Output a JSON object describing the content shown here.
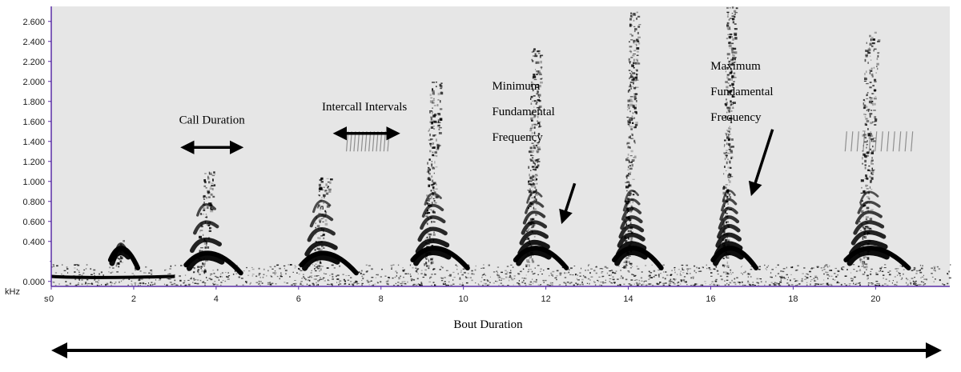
{
  "chart_data": {
    "type": "spectrogram",
    "title": "",
    "ylabel": "kHz",
    "xlabel": "s",
    "x_axis_title": "Bout Duration",
    "xlim": [
      0,
      21.8
    ],
    "ylim": [
      -0.05,
      2.75
    ],
    "x_ticks": [
      0,
      2,
      4,
      6,
      8,
      10,
      12,
      14,
      16,
      18,
      20
    ],
    "x_tick_labels": [
      "0",
      "2",
      "4",
      "6",
      "8",
      "10",
      "12",
      "14",
      "16",
      "18",
      "20"
    ],
    "y_ticks": [
      0,
      0.4,
      0.6,
      0.8,
      1.0,
      1.2,
      1.4,
      1.6,
      1.8,
      2.0,
      2.2,
      2.4,
      2.6
    ],
    "y_tick_labels": [
      "0.000",
      "0.400",
      "0.600",
      "0.800",
      "1.000",
      "1.200",
      "1.400",
      "1.600",
      "1.800",
      "2.000",
      "2.200",
      "2.400",
      "2.600"
    ],
    "grid": false,
    "colors": {
      "background": "#e6e6e6",
      "ink": "#000000",
      "axis": "#5a2ea6"
    },
    "calls": [
      {
        "start": 1.4,
        "end": 2.1,
        "low": 0.15,
        "high": 0.42,
        "stripes": 3
      },
      {
        "start": 3.2,
        "end": 4.6,
        "low": 0.1,
        "high": 1.1,
        "stripes": 4
      },
      {
        "start": 6.0,
        "end": 7.4,
        "low": 0.1,
        "high": 1.05,
        "stripes": 5
      },
      {
        "start": 8.7,
        "end": 10.1,
        "low": 0.15,
        "high": 2.0,
        "stripes": 6
      },
      {
        "start": 11.2,
        "end": 12.5,
        "low": 0.15,
        "high": 2.35,
        "stripes": 7
      },
      {
        "start": 13.6,
        "end": 14.8,
        "low": 0.15,
        "high": 2.7,
        "stripes": 8
      },
      {
        "start": 16.0,
        "end": 17.1,
        "low": 0.15,
        "high": 2.75,
        "stripes": 8
      },
      {
        "start": 19.2,
        "end": 20.8,
        "low": 0.15,
        "high": 2.5,
        "stripes": 7
      }
    ],
    "annotations": [
      {
        "id": "call-duration",
        "lines": [
          "Call Duration"
        ],
        "x": 3.9,
        "y": 1.58,
        "arrow": {
          "type": "double",
          "x1": 3.2,
          "y1": 1.34,
          "x2": 4.6,
          "y2": 1.34
        }
      },
      {
        "id": "intercall-intervals",
        "lines": [
          "Intercall Intervals"
        ],
        "x": 7.6,
        "y": 1.71,
        "arrow": {
          "type": "double",
          "x1": 6.9,
          "y1": 1.48,
          "x2": 8.4,
          "y2": 1.48
        }
      },
      {
        "id": "minimum-fundamental-frequency",
        "lines": [
          "Minimum",
          "Fundamental",
          "Frequency"
        ],
        "x": 11.9,
        "y": 1.92,
        "arrow": {
          "type": "single",
          "x1": 12.7,
          "y1": 0.98,
          "x2": 12.4,
          "y2": 0.6
        }
      },
      {
        "id": "maximum-fundamental-frequency",
        "lines": [
          "Maximum",
          "Fundamental",
          "Frequency"
        ],
        "x": 17.2,
        "y": 2.12,
        "arrow": {
          "type": "single",
          "x1": 17.5,
          "y1": 1.52,
          "x2": 17.0,
          "y2": 0.88
        }
      }
    ]
  }
}
